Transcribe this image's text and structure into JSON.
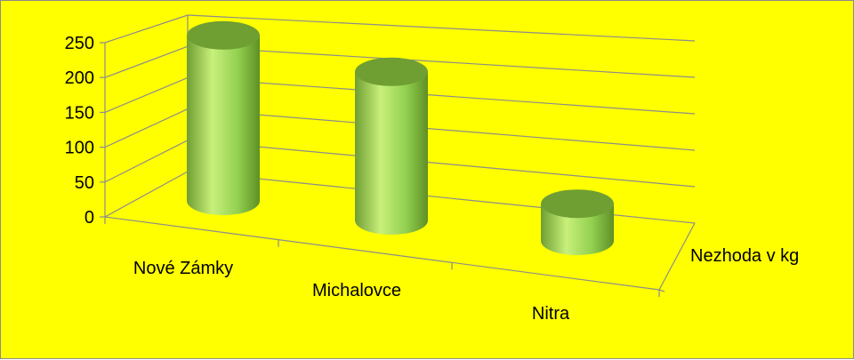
{
  "chart_data": {
    "type": "bar",
    "style": "3d-cylinder",
    "categories": [
      "Nové Zámky",
      "Michalovce",
      "Nitra"
    ],
    "series": [
      {
        "name": "Nezhoda v kg",
        "values": [
          245,
          220,
          55
        ]
      }
    ],
    "ylim": [
      0,
      250
    ],
    "yticks": [
      "0",
      "50",
      "100",
      "150",
      "200",
      "250"
    ],
    "grid": true,
    "legend": "none",
    "colors": {
      "background": "#ffff00",
      "cylinder_light": "#c8f07a",
      "cylinder_mid": "#92d050",
      "cylinder_dark": "#5e8f24",
      "cylinder_top": "#6f9e33",
      "grid": "#8c8c8c"
    }
  }
}
